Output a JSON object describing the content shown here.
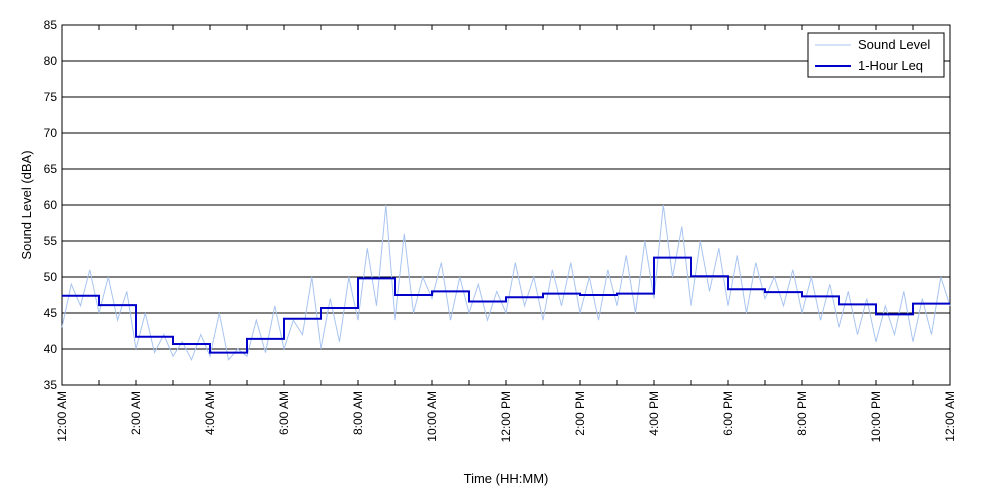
{
  "chart_data": {
    "type": "line",
    "title": "",
    "xlabel": "Time (HH:MM)",
    "ylabel": "Sound Level (dBA)",
    "xlim": [
      0,
      24
    ],
    "ylim": [
      35,
      85
    ],
    "y_ticks": [
      35,
      40,
      45,
      50,
      55,
      60,
      65,
      70,
      75,
      80,
      85
    ],
    "x_tick_hours": [
      0,
      2,
      4,
      6,
      8,
      10,
      12,
      14,
      16,
      18,
      20,
      22,
      24
    ],
    "x_tick_labels": [
      "12:00 AM",
      "2:00 AM",
      "4:00 AM",
      "6:00 AM",
      "8:00 AM",
      "10:00 AM",
      "12:00 PM",
      "2:00 PM",
      "4:00 PM",
      "6:00 PM",
      "8:00 PM",
      "10:00 PM",
      "12:00 AM"
    ],
    "grid": "horizontal",
    "legend_position": "top-right",
    "series": [
      {
        "name": "Sound Level",
        "kind": "line",
        "color": "#a8c4f0",
        "x": [
          0.0,
          0.25,
          0.5,
          0.75,
          1.0,
          1.25,
          1.5,
          1.75,
          2.0,
          2.25,
          2.5,
          2.75,
          3.0,
          3.25,
          3.5,
          3.75,
          4.0,
          4.25,
          4.5,
          4.75,
          5.0,
          5.25,
          5.5,
          5.75,
          6.0,
          6.25,
          6.5,
          6.75,
          7.0,
          7.25,
          7.5,
          7.75,
          8.0,
          8.25,
          8.5,
          8.75,
          9.0,
          9.25,
          9.5,
          9.75,
          10.0,
          10.25,
          10.5,
          10.75,
          11.0,
          11.25,
          11.5,
          11.75,
          12.0,
          12.25,
          12.5,
          12.75,
          13.0,
          13.25,
          13.5,
          13.75,
          14.0,
          14.25,
          14.5,
          14.75,
          15.0,
          15.25,
          15.5,
          15.75,
          16.0,
          16.25,
          16.5,
          16.75,
          17.0,
          17.25,
          17.5,
          17.75,
          18.0,
          18.25,
          18.5,
          18.75,
          19.0,
          19.25,
          19.5,
          19.75,
          20.0,
          20.25,
          20.5,
          20.75,
          21.0,
          21.25,
          21.5,
          21.75,
          22.0,
          22.25,
          22.5,
          22.75,
          23.0,
          23.25,
          23.5,
          23.75,
          24.0
        ],
        "values": [
          43,
          49,
          46,
          51,
          45,
          50,
          44,
          48,
          40,
          45,
          39.5,
          42,
          39,
          41,
          38.5,
          42,
          39,
          45,
          38.5,
          40,
          39,
          44,
          39.5,
          46,
          40,
          44,
          42,
          50,
          40,
          47,
          41,
          50,
          44,
          54,
          46,
          60,
          44,
          56,
          45,
          50,
          47,
          52,
          44,
          50,
          45,
          49,
          44,
          48,
          45,
          52,
          46,
          50,
          44,
          51,
          46,
          52,
          45,
          50,
          44,
          51,
          46,
          53,
          45,
          55,
          47,
          60,
          50,
          57,
          46,
          55,
          48,
          54,
          46,
          53,
          45,
          52,
          47,
          50,
          46,
          51,
          45,
          50,
          44,
          49,
          43,
          48,
          42,
          47,
          41,
          46,
          42,
          48,
          41,
          47,
          42,
          50,
          46
        ]
      },
      {
        "name": "1-Hour Leq",
        "kind": "step",
        "color": "#0000c8",
        "hours": [
          0,
          1,
          2,
          3,
          4,
          5,
          6,
          7,
          8,
          9,
          10,
          11,
          12,
          13,
          14,
          15,
          16,
          17,
          18,
          19,
          20,
          21,
          22,
          23
        ],
        "values": [
          47.4,
          46.1,
          41.7,
          40.7,
          39.5,
          41.4,
          44.2,
          45.7,
          49.8,
          47.5,
          48.0,
          46.6,
          47.2,
          47.7,
          47.5,
          47.7,
          52.7,
          50.1,
          48.3,
          47.9,
          47.3,
          46.2,
          44.8,
          46.3
        ]
      }
    ]
  }
}
